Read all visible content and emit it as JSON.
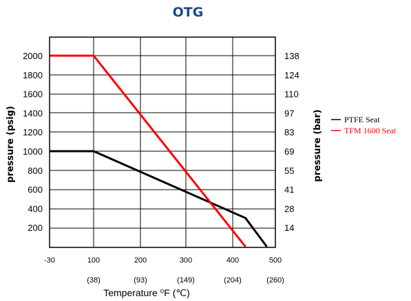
{
  "chart_data": {
    "type": "line",
    "title": "OTG",
    "xlabel": "Temperature ⁰F (℃)",
    "ylabel": "pressure (psig)",
    "y2label": "pressure (bar)",
    "xlim": [
      -30,
      500
    ],
    "ylim": [
      0,
      2200
    ],
    "x_tick_values": [
      -30,
      100,
      200,
      300,
      400,
      500
    ],
    "x_tick_labels": [
      "-30",
      "100",
      "200",
      "300",
      "400",
      "500"
    ],
    "x_tick_sublabels": [
      "(38)",
      "(93)",
      "(149)",
      "(204)",
      "(260)"
    ],
    "y_ticks": [
      200,
      400,
      600,
      800,
      1000,
      1200,
      1400,
      1600,
      1800,
      2000
    ],
    "y2_ticks": [
      "14",
      "28",
      "41",
      "55",
      "69",
      "83",
      "97",
      "110",
      "124",
      "138"
    ],
    "grid": true,
    "legend_position": "right",
    "series": [
      {
        "name": "PTFE Seat",
        "color": "#000000",
        "x": [
          -30,
          100,
          430,
          480
        ],
        "y": [
          1000,
          1000,
          300,
          0
        ]
      },
      {
        "name": "TFM 1600 Seat",
        "color": "#ff0000",
        "x": [
          -30,
          100,
          430
        ],
        "y": [
          2000,
          2000,
          0
        ]
      }
    ],
    "title_color": "#1a4a8a"
  }
}
